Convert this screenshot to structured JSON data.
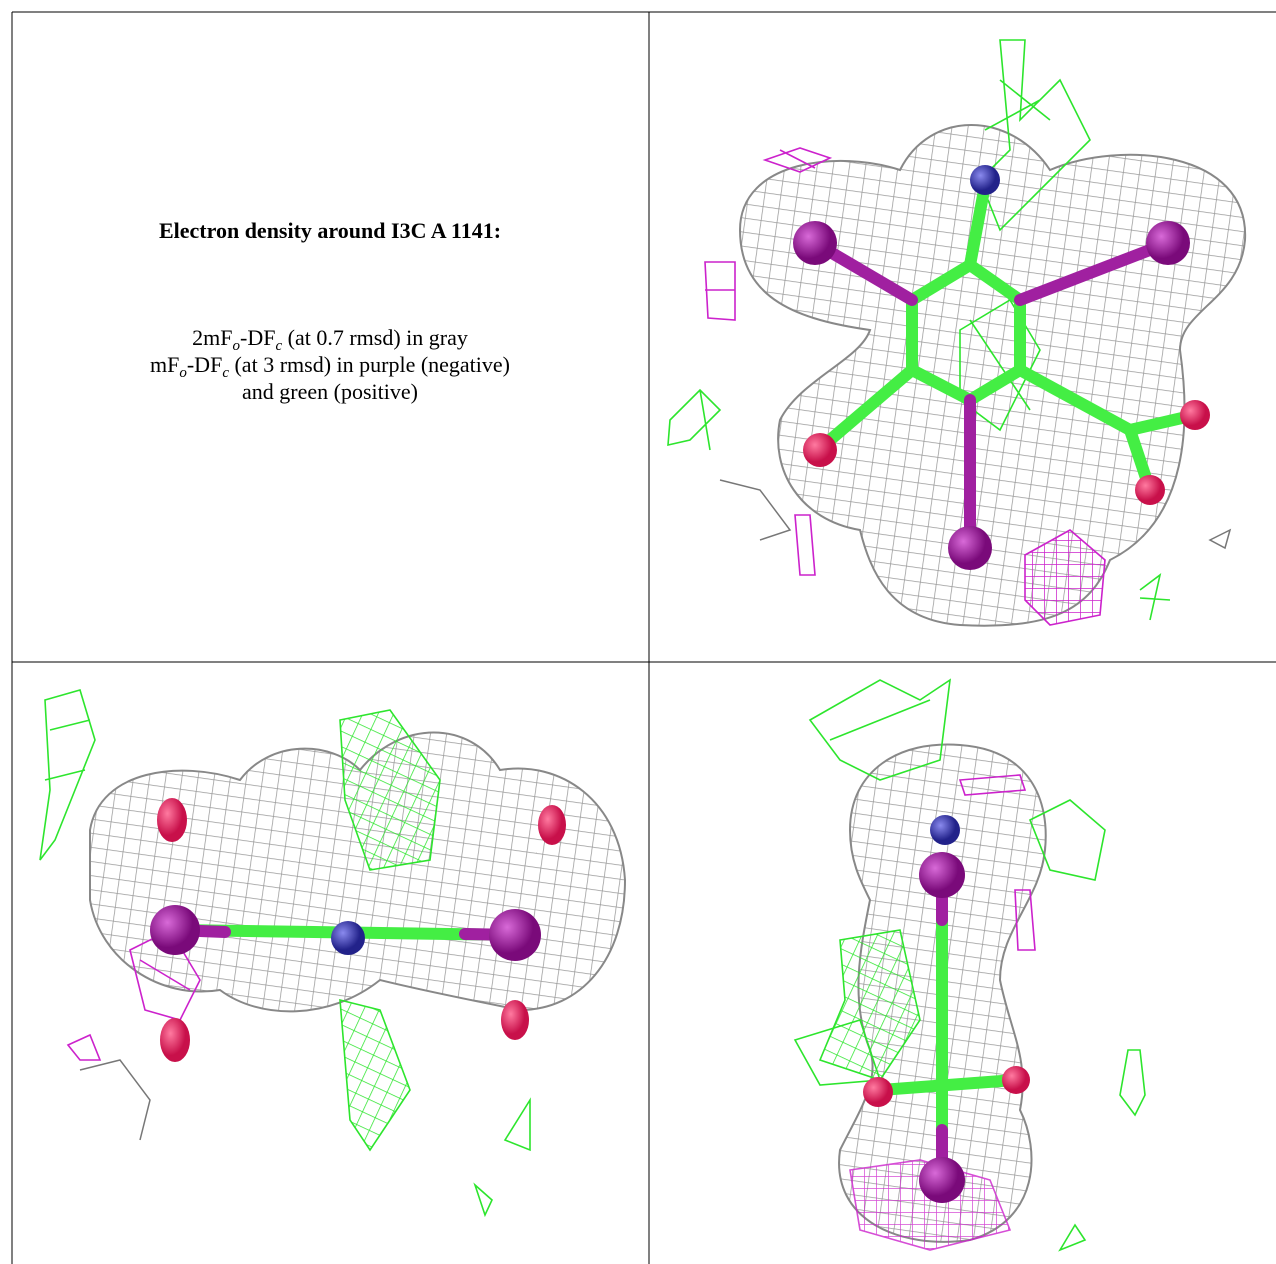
{
  "panel": {
    "title": "Electron density around I3C A 1141:",
    "lines": [
      [
        "2mF",
        "o",
        "-DF",
        "c",
        " (at 0.7 rmsd) in gray"
      ],
      [
        "mF",
        "o",
        "-DF",
        "c",
        " (at 3 rmsd) in purple (negative)"
      ],
      [
        "and green (positive)"
      ]
    ]
  }
}
